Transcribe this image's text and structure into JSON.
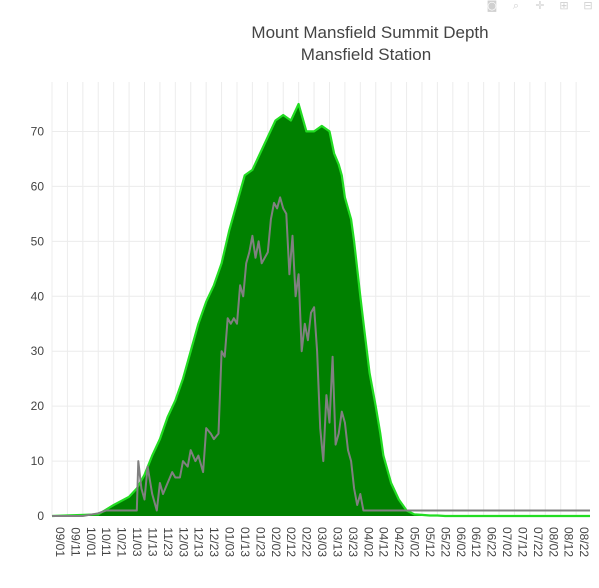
{
  "modebar": [
    {
      "name": "camera-icon",
      "glyph": "◙"
    },
    {
      "name": "zoom-icon",
      "glyph": "⌕"
    },
    {
      "name": "pan-icon",
      "glyph": "✛"
    },
    {
      "name": "zoom-in-icon",
      "glyph": "⊞"
    },
    {
      "name": "zoom-out-icon",
      "glyph": "⊟"
    }
  ],
  "chart_data": {
    "type": "area",
    "title": "Mount Mansfield Summit Depth",
    "subtitle": "Mansfield Station",
    "xlabel": "",
    "ylabel": "",
    "ylim": [
      0,
      79
    ],
    "yticks": [
      0,
      10,
      20,
      30,
      40,
      50,
      60,
      70
    ],
    "xticks": [
      "09/01",
      "09/11",
      "10/01",
      "10/11",
      "10/21",
      "11/03",
      "11/13",
      "11/23",
      "12/03",
      "12/13",
      "12/23",
      "01/03",
      "01/13",
      "01/23",
      "02/02",
      "02/12",
      "02/22",
      "03/03",
      "03/13",
      "03/23",
      "04/02",
      "04/12",
      "04/22",
      "05/02",
      "05/12",
      "05/22",
      "06/02",
      "06/12",
      "06/22",
      "07/02",
      "07/12",
      "07/22",
      "08/02",
      "08/12",
      "08/22"
    ],
    "xrange": [
      0,
      34.9
    ],
    "grid": true,
    "colors": {
      "area_fill": "#008000",
      "area_line": "#22dd22",
      "line": "#808080"
    },
    "series": [
      {
        "kind": "area",
        "x": [
          0,
          3,
          4,
          5,
          5.5,
          6,
          6.5,
          7,
          7.5,
          8,
          8.5,
          9,
          9.5,
          10,
          10.5,
          11,
          11.5,
          12,
          12.5,
          13,
          13.5,
          14,
          14.5,
          15,
          15.5,
          16,
          16.5,
          17,
          17.5,
          18,
          18.3,
          18.6,
          18.8,
          19,
          19.2,
          19.4,
          19.6,
          20,
          20.3,
          20.6,
          21,
          21.3,
          21.5,
          22,
          22.5,
          23,
          23.5,
          24,
          24.5,
          25,
          25.5,
          26,
          26.5,
          27,
          27.5,
          28,
          34.9
        ],
        "y": [
          0,
          0.3,
          2,
          3.5,
          5,
          7.5,
          11,
          14,
          18,
          21,
          25,
          30,
          35,
          39,
          42,
          46,
          52,
          57,
          62,
          63,
          66,
          69,
          72,
          73,
          72,
          75,
          70,
          70,
          71,
          70,
          66,
          64,
          62,
          58,
          56,
          54,
          50,
          40,
          33,
          26,
          20,
          15,
          11,
          6,
          3,
          1,
          0.3,
          0.2,
          0.1,
          0.1,
          0,
          0,
          0,
          0,
          0,
          0,
          0
        ]
      },
      {
        "kind": "line",
        "x": [
          0,
          2,
          3,
          3.5,
          4,
          4.5,
          5,
          5.5,
          5.6,
          5.8,
          6,
          6.2,
          6.5,
          6.8,
          7,
          7.2,
          7.5,
          7.8,
          8,
          8.3,
          8.5,
          8.8,
          9,
          9.3,
          9.5,
          9.8,
          10,
          10.3,
          10.5,
          10.8,
          11,
          11.2,
          11.4,
          11.6,
          11.8,
          12,
          12.2,
          12.4,
          12.6,
          12.8,
          13,
          13.2,
          13.4,
          13.6,
          13.8,
          14,
          14.2,
          14.4,
          14.6,
          14.8,
          15,
          15.2,
          15.4,
          15.6,
          15.8,
          16,
          16.2,
          16.4,
          16.6,
          16.8,
          17,
          17.2,
          17.4,
          17.6,
          17.8,
          18,
          18.2,
          18.4,
          18.6,
          18.8,
          19,
          19.2,
          19.4,
          19.6,
          19.8,
          20,
          20.2,
          20.4,
          20.6,
          20.8,
          21,
          21.3,
          21.5,
          21.7,
          22,
          34.9
        ],
        "y": [
          0,
          0,
          0.5,
          1,
          1,
          1,
          1,
          1,
          10,
          5,
          3,
          9,
          4,
          1,
          6,
          4,
          6,
          8,
          7,
          7,
          10,
          9,
          12,
          10,
          11,
          8,
          16,
          15,
          14,
          15,
          30,
          29,
          36,
          35,
          36,
          35,
          42,
          40,
          46,
          48,
          51,
          47,
          50,
          46,
          47,
          48,
          54,
          57,
          56,
          58,
          56,
          55,
          44,
          51,
          40,
          44,
          30,
          35,
          32,
          37,
          38,
          30,
          16,
          10,
          22,
          17,
          29,
          13,
          15,
          19,
          17,
          12,
          10,
          5,
          2,
          4,
          1,
          1,
          1,
          1,
          1,
          1,
          1,
          1,
          1,
          1
        ]
      }
    ]
  }
}
